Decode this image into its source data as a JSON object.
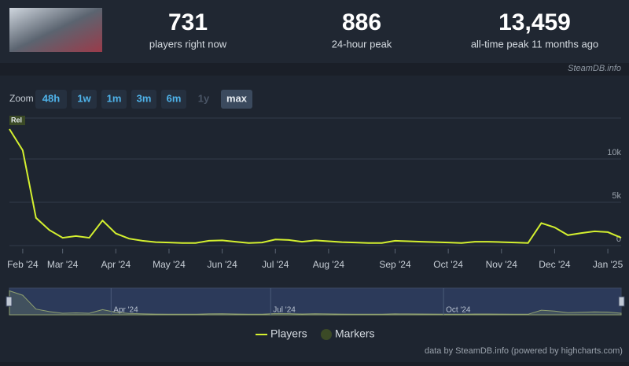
{
  "stats": [
    {
      "value": "731",
      "label": "players right now"
    },
    {
      "value": "886",
      "label": "24-hour peak"
    },
    {
      "value": "13,459",
      "label": "all-time peak 11 months ago"
    }
  ],
  "brand": "SteamDB.info",
  "zoom": {
    "label": "Zoom",
    "buttons": [
      "48h",
      "1w",
      "1m",
      "3m",
      "6m",
      "1y",
      "max"
    ],
    "disabled": "1y",
    "active": "max"
  },
  "credit": "data by SteamDB.info (powered by highcharts.com)",
  "chart_data": {
    "type": "line",
    "categories": [
      null,
      "Feb '24",
      null,
      null,
      "Mar '24",
      null,
      null,
      null,
      "Apr '24",
      null,
      null,
      null,
      "May '24",
      null,
      null,
      null,
      "Jun '24",
      null,
      null,
      null,
      "Jul '24",
      null,
      null,
      null,
      "Aug '24",
      null,
      null,
      null,
      null,
      "Sep '24",
      null,
      null,
      null,
      "Oct '24",
      null,
      null,
      null,
      "Nov '24",
      null,
      null,
      null,
      "Dec '24",
      null,
      null,
      null,
      "Jan '25",
      null
    ],
    "series": [
      {
        "name": "Players",
        "color": "#d4f02f",
        "values": [
          13459,
          11000,
          3200,
          1800,
          900,
          1100,
          900,
          2900,
          1400,
          800,
          550,
          400,
          350,
          300,
          300,
          550,
          600,
          450,
          300,
          350,
          700,
          650,
          450,
          600,
          500,
          400,
          350,
          300,
          300,
          550,
          500,
          450,
          400,
          350,
          300,
          450,
          450,
          400,
          350,
          300,
          2600,
          2100,
          1200,
          1450,
          1650,
          1550,
          900
        ]
      }
    ],
    "markers": {
      "name": "Markers",
      "label": "Rel",
      "color": "#3b4a26"
    },
    "ylim": [
      0,
      15000
    ],
    "yticks": [
      0,
      {
        "value": 5000,
        "label": "5k"
      },
      {
        "value": 10000,
        "label": "10k"
      }
    ],
    "grid": true,
    "navigator_labels": [
      "Apr '24",
      "Jul '24",
      "Oct '24"
    ]
  }
}
